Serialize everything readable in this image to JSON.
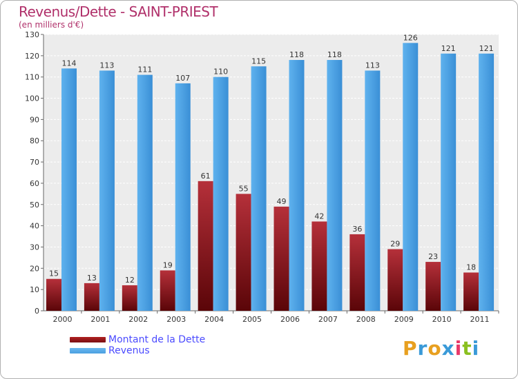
{
  "header": {
    "title": "Revenus/Dette - SAINT-PRIEST",
    "subtitle": "(en milliers d'€)"
  },
  "legend": {
    "items": [
      {
        "label": "Montant de la Dette",
        "color": "#7a0f14"
      },
      {
        "label": "Revenus",
        "color": "#4a9fe0"
      }
    ]
  },
  "logo": {
    "text": "Proxiti",
    "colors": [
      "#e8a020",
      "#3a9ad8",
      "#e8a020",
      "#3a9ad8",
      "#e83a6a",
      "#8ac020",
      "#3a9ad8"
    ]
  },
  "chart_data": {
    "type": "bar",
    "categories": [
      "2000",
      "2001",
      "2002",
      "2003",
      "2004",
      "2005",
      "2006",
      "2007",
      "2008",
      "2009",
      "2010",
      "2011"
    ],
    "series": [
      {
        "name": "Montant de la Dette",
        "values": [
          15,
          13,
          12,
          19,
          61,
          55,
          49,
          42,
          36,
          29,
          23,
          18
        ],
        "color": "#7a0f14"
      },
      {
        "name": "Revenus",
        "values": [
          114,
          113,
          111,
          107,
          110,
          115,
          118,
          118,
          113,
          126,
          121,
          121
        ],
        "color": "#4a9fe0"
      }
    ],
    "yticks": [
      "0",
      "10",
      "20",
      "30",
      "40",
      "50",
      "60",
      "70",
      "80",
      "90",
      "100",
      "110",
      "120",
      "130"
    ],
    "ylim": [
      0,
      130
    ],
    "grid": true,
    "legend_position": "bottom-left"
  }
}
